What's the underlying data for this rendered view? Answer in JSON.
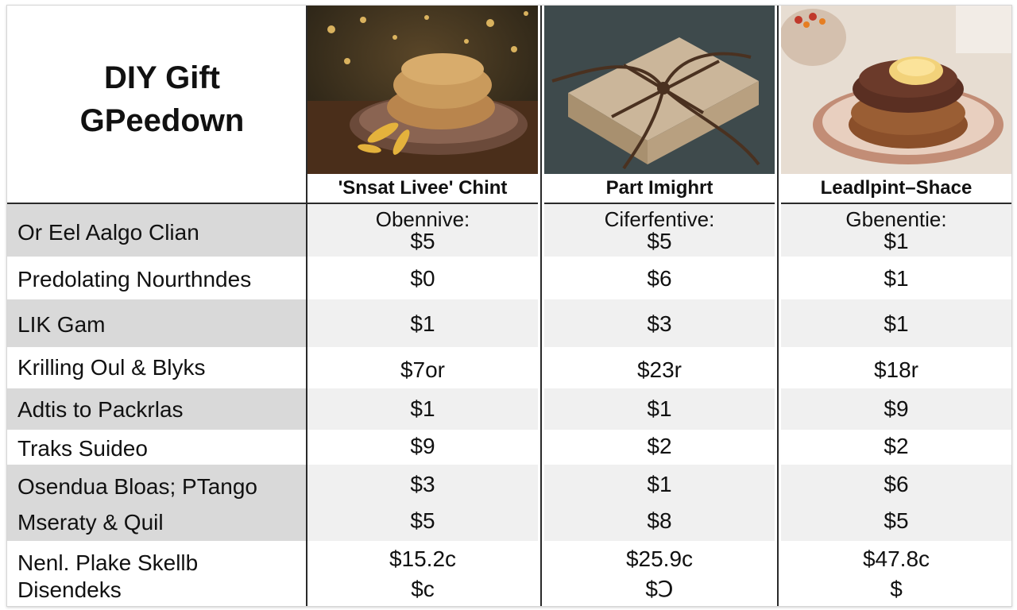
{
  "title": {
    "line1": "DIY Gift",
    "line2": "GPeedown"
  },
  "columns": [
    {
      "header": "'Snsat Livee' Chint",
      "photo": "cookies-photo",
      "subtitle": "Obennive:"
    },
    {
      "header": "Part Imighrt",
      "photo": "gift-box-photo",
      "subtitle": "Ciferfentive:"
    },
    {
      "header": "Leadlpint–Shace",
      "photo": "cookie-stack-photo",
      "subtitle": "Gbenentie:"
    }
  ],
  "rows": [
    {
      "label": "Or Eel Aalgo Clian",
      "values": [
        "$5",
        "$5",
        "$1"
      ]
    },
    {
      "label": "Predolating Nourthndes",
      "values": [
        "$0",
        "$6",
        "$1"
      ]
    },
    {
      "label": "LIK Gam",
      "values": [
        "$1",
        "$3",
        "$1"
      ]
    },
    {
      "label": "Krilling Oul & Blyks",
      "values": [
        "$7or",
        "$23r",
        "$18r"
      ]
    },
    {
      "label": "Adtis to Packrlas",
      "values": [
        "$1",
        "$1",
        "$9"
      ]
    },
    {
      "label": "Traks Suideo",
      "values": [
        "$9",
        "$2",
        "$2"
      ]
    },
    {
      "label": "Osendua Bloas; PTango",
      "values": [
        "$3",
        "$1",
        "$6"
      ]
    },
    {
      "label": "Mseraty & Quil",
      "values": [
        "$5",
        "$8",
        "$5"
      ]
    },
    {
      "label": "Nenl. Plake Skellb",
      "values": [
        "$15.2c",
        "$25.9c",
        "$47.8c"
      ]
    },
    {
      "label": "Disendeks",
      "values": [
        "$c",
        "$Ↄ",
        "$"
      ]
    }
  ]
}
